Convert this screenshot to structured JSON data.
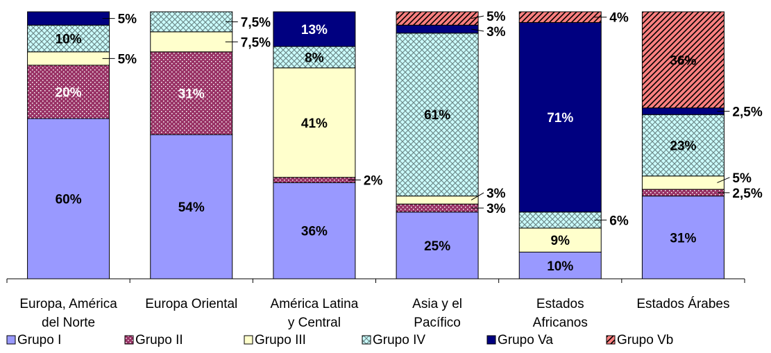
{
  "chart_data": {
    "type": "bar",
    "stacked": true,
    "title": "",
    "xlabel": "",
    "ylabel": "",
    "ylim": [
      0,
      100
    ],
    "grid": false,
    "legend_position": "bottom",
    "categories": [
      [
        "Europa, América",
        "del Norte"
      ],
      [
        "Europa Oriental"
      ],
      [
        "América Latina",
        "y Central"
      ],
      [
        "Asia y el",
        "Pacífico"
      ],
      [
        "Estados",
        "Africanos"
      ],
      [
        "Estados Árabes"
      ]
    ],
    "series": [
      {
        "name": "Grupo I",
        "color": "#9999ff",
        "pattern": "solid",
        "values": [
          60,
          54,
          36,
          25,
          10,
          31
        ],
        "labels": [
          "60%",
          "54%",
          "36%",
          "25%",
          "10%",
          "31%"
        ]
      },
      {
        "name": "Grupo II",
        "color": "#993366",
        "pattern": "dots",
        "values": [
          20,
          31,
          2,
          3,
          0,
          2.5
        ],
        "labels": [
          "20%",
          "31%",
          "2%",
          "3%",
          "",
          "2,5%"
        ]
      },
      {
        "name": "Grupo III",
        "color": "#ffffcc",
        "pattern": "solid",
        "values": [
          5,
          7.5,
          41,
          3,
          9,
          5
        ],
        "labels": [
          "5%",
          "7,5%",
          "41%",
          "3%",
          "9%",
          "5%"
        ]
      },
      {
        "name": "Grupo IV",
        "color": "#ccffff",
        "pattern": "weave",
        "values": [
          10,
          7.5,
          8,
          61,
          6,
          23
        ],
        "labels": [
          "10%",
          "7,5%",
          "8%",
          "61%",
          "6%",
          "23%"
        ]
      },
      {
        "name": "Grupo Va",
        "color": "#000080",
        "pattern": "solid",
        "values": [
          5,
          0,
          13,
          3,
          71,
          2.5
        ],
        "labels": [
          "5%",
          "",
          "13%",
          "3%",
          "71%",
          "2,5%"
        ]
      },
      {
        "name": "Grupo Vb",
        "color": "#ff8080",
        "pattern": "stripes",
        "values": [
          0,
          0,
          0,
          5,
          4,
          36
        ],
        "labels": [
          "",
          "",
          "",
          "5%",
          "4%",
          "36%"
        ]
      }
    ]
  }
}
